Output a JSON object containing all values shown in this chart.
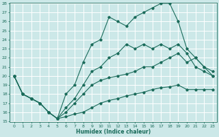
{
  "bg_color": "#cce8e8",
  "grid_color": "#ffffff",
  "line_color": "#1a6b5a",
  "xlabel": "Humidex (Indice chaleur)",
  "ylim": [
    15,
    28
  ],
  "xlim": [
    -0.5,
    23.5
  ],
  "yticks": [
    15,
    16,
    17,
    18,
    19,
    20,
    21,
    22,
    23,
    24,
    25,
    26,
    27,
    28
  ],
  "xticks": [
    0,
    1,
    2,
    3,
    4,
    5,
    6,
    7,
    8,
    9,
    10,
    11,
    12,
    13,
    14,
    15,
    16,
    17,
    18,
    19,
    20,
    21,
    22,
    23
  ],
  "series": [
    {
      "x": [
        0,
        1,
        2,
        3,
        4,
        5,
        6,
        7,
        8,
        9,
        10,
        11,
        12,
        13,
        14,
        15,
        16,
        17,
        18,
        19,
        20,
        21,
        22,
        23
      ],
      "y": [
        20,
        18,
        17.5,
        17,
        16,
        15.3,
        15.5,
        15.8,
        16,
        16.5,
        17,
        17.3,
        17.5,
        17.8,
        18,
        18.2,
        18.5,
        18.7,
        18.8,
        19,
        18.5,
        18.5,
        18.5,
        18.5
      ]
    },
    {
      "x": [
        0,
        1,
        2,
        3,
        4,
        5,
        6,
        7,
        8,
        9,
        10,
        11,
        12,
        13,
        14,
        15,
        16,
        17,
        18,
        19,
        20,
        21,
        22,
        23
      ],
      "y": [
        20,
        18,
        17.5,
        17,
        16,
        15.3,
        16,
        17,
        18,
        19,
        19.5,
        19.8,
        20,
        20.2,
        20.5,
        21,
        21,
        21.5,
        22,
        22.5,
        21.5,
        22,
        21,
        20
      ]
    },
    {
      "x": [
        0,
        1,
        2,
        3,
        4,
        5,
        6,
        7,
        8,
        9,
        10,
        11,
        12,
        13,
        14,
        15,
        16,
        17,
        18,
        19,
        20,
        21,
        22,
        23
      ],
      "y": [
        20,
        18,
        17.5,
        17,
        16,
        15.3,
        16.5,
        17.5,
        19,
        20.5,
        21,
        22,
        22.5,
        23.5,
        23,
        23.5,
        23,
        23.5,
        23,
        23.5,
        22.5,
        21,
        20.5,
        20
      ]
    },
    {
      "x": [
        0,
        1,
        2,
        3,
        4,
        5,
        6,
        7,
        8,
        9,
        10,
        11,
        12,
        13,
        14,
        15,
        16,
        17,
        18,
        19,
        20,
        21,
        22,
        23
      ],
      "y": [
        20,
        18,
        17.5,
        17,
        16,
        15.3,
        18,
        19,
        21.5,
        23.5,
        24,
        26.5,
        26,
        25.5,
        26.5,
        27,
        27.5,
        28,
        28,
        26,
        23,
        22,
        21,
        20.5
      ]
    }
  ]
}
